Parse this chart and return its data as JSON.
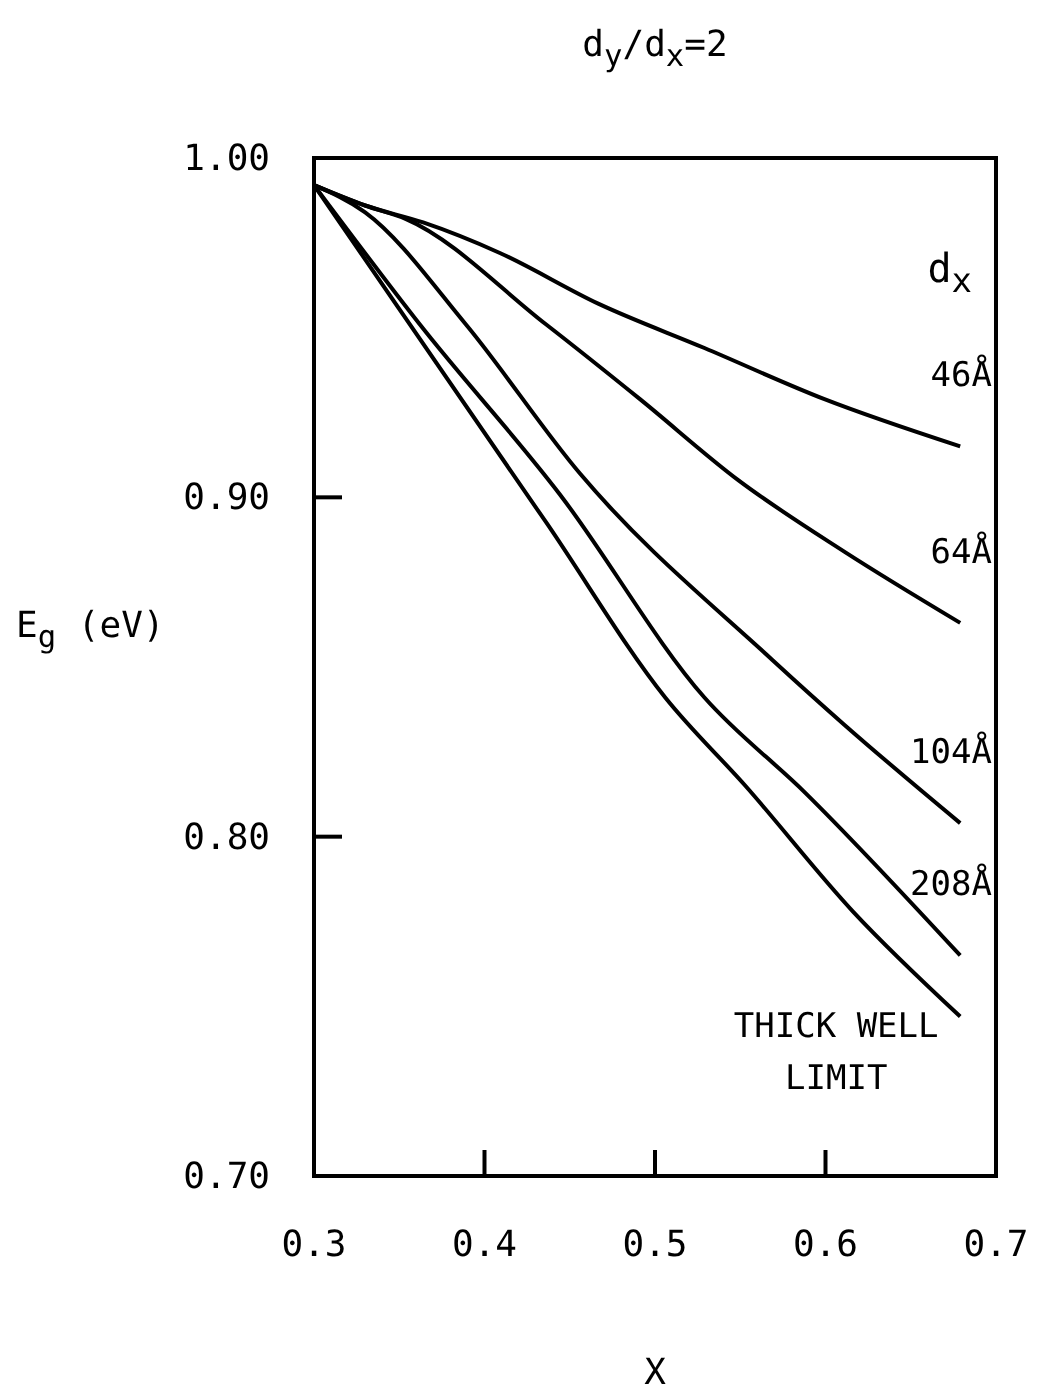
{
  "chart_data": {
    "type": "line",
    "title": "d$_{y}$/d$_{x}$=2",
    "xlabel": "X",
    "ylabel": "E$_{g}$ (eV)",
    "legend_title": "d$_{x}$",
    "xlim": [
      0.3,
      0.7
    ],
    "ylim": [
      0.7,
      1.0
    ],
    "xticks": [
      0.3,
      0.4,
      0.5,
      0.6,
      0.7
    ],
    "yticks": [
      {
        "value": 0.7,
        "label": "0.70"
      },
      {
        "value": 0.8,
        "label": "0.80"
      },
      {
        "value": 0.9,
        "label": "0.90"
      },
      {
        "value": 1.0,
        "label": "1.00"
      }
    ],
    "grid": false,
    "marker": "none",
    "line_style": "solid",
    "series": [
      {
        "name": "46Å",
        "color": "#000000",
        "x": [
          0.3,
          0.33,
          0.364,
          0.409,
          0.467,
          0.529,
          0.599,
          0.679
        ],
        "values": [
          0.992,
          0.986,
          0.981,
          0.972,
          0.957,
          0.944,
          0.929,
          0.915
        ]
      },
      {
        "name": "64Å",
        "color": "#000000",
        "x": [
          0.3,
          0.33,
          0.354,
          0.436,
          0.491,
          0.549,
          0.611,
          0.679
        ],
        "values": [
          0.992,
          0.986,
          0.982,
          0.951,
          0.929,
          0.905,
          0.884,
          0.863
        ]
      },
      {
        "name": "104Å",
        "color": "#000000",
        "x": [
          0.3,
          0.33,
          0.389,
          0.456,
          0.569,
          0.611,
          0.679
        ],
        "values": [
          0.992,
          0.984,
          0.951,
          0.907,
          0.852,
          0.833,
          0.804
        ]
      },
      {
        "name": "208Å",
        "color": "#000000",
        "x": [
          0.3,
          0.362,
          0.444,
          0.529,
          0.588,
          0.679
        ],
        "values": [
          0.992,
          0.951,
          0.901,
          0.841,
          0.813,
          0.765
        ]
      },
      {
        "name": "THICK WELL LIMIT",
        "color": "#000000",
        "x": [
          0.3,
          0.437,
          0.506,
          0.553,
          0.616,
          0.679
        ],
        "values": [
          0.992,
          0.892,
          0.841,
          0.815,
          0.778,
          0.747
        ]
      }
    ]
  }
}
